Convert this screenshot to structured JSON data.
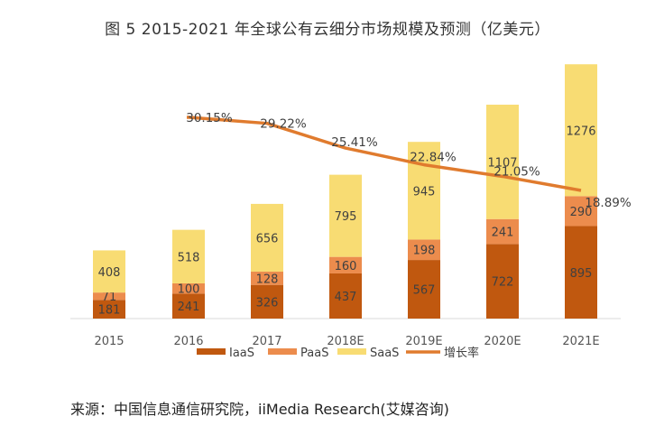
{
  "chart_data": {
    "type": "bar",
    "stacked": true,
    "title": "图 5   2015-2021 年全球公有云细分市场规模及预测（亿美元）",
    "categories": [
      "2015",
      "2016",
      "2017",
      "2018E",
      "2019E",
      "2020E",
      "2021E"
    ],
    "series": [
      {
        "name": "IaaS",
        "color": "#c0580f",
        "values": [
          181,
          241,
          326,
          437,
          567,
          722,
          895
        ]
      },
      {
        "name": "PaaS",
        "color": "#ec8c4d",
        "values": [
          71,
          100,
          128,
          160,
          198,
          241,
          290
        ]
      },
      {
        "name": "SaaS",
        "color": "#f8dc73",
        "values": [
          408,
          518,
          656,
          795,
          945,
          1107,
          1276
        ]
      }
    ],
    "line_series": {
      "name": "增长率",
      "color": "#e07b2e",
      "values": [
        null,
        30.15,
        29.22,
        25.41,
        22.84,
        21.05,
        18.89
      ],
      "labels": [
        null,
        "30.15%",
        "29.22%",
        "25.41%",
        "22.84%",
        "21.05%",
        "18.89%"
      ]
    },
    "ylim": [
      0,
      2600
    ],
    "line_ylim": [
      0,
      40
    ],
    "xlabel": "",
    "ylabel": "",
    "legend": {
      "position": "bottom",
      "items": [
        "IaaS",
        "PaaS",
        "SaaS",
        "增长率"
      ]
    }
  },
  "source": "来源：中国信息通信研究院，iiMedia Research(艾媒咨询)"
}
